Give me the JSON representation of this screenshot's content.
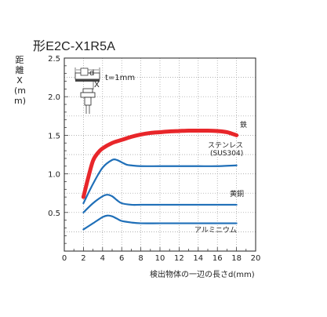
{
  "chart_data": {
    "type": "line",
    "title": "形E2C-X1R5A",
    "xlabel": "検出物体の一辺の長さd(mm)",
    "ylabel": "距離X(mm)",
    "xlim": [
      0,
      20
    ],
    "ylim": [
      0,
      2.5
    ],
    "xticks": [
      "0",
      "2",
      "4",
      "6",
      "8",
      "10",
      "12",
      "14",
      "16",
      "18",
      "20"
    ],
    "yticks": [
      "0.5",
      "1.0",
      "1.5",
      "2.0",
      "2.5"
    ],
    "grid": true,
    "diagram": {
      "label_d": "d",
      "label_x": "X",
      "label_t": "t=1mm"
    },
    "series": [
      {
        "name": "鉄",
        "color": "#e8262a",
        "x": [
          2,
          2.5,
          3,
          3.5,
          4,
          5,
          6,
          7,
          8,
          9,
          10,
          11,
          12,
          13,
          14,
          15,
          16,
          17,
          18
        ],
        "y": [
          0.7,
          0.95,
          1.17,
          1.27,
          1.33,
          1.4,
          1.44,
          1.48,
          1.51,
          1.53,
          1.54,
          1.55,
          1.555,
          1.56,
          1.56,
          1.56,
          1.555,
          1.54,
          1.5
        ]
      },
      {
        "name": "ステンレス(SUS304)",
        "color": "#1f6fb8",
        "x": [
          2,
          3,
          4,
          5,
          5.5,
          6,
          6.5,
          7,
          8,
          10,
          12,
          14,
          16,
          18
        ],
        "y": [
          0.62,
          0.87,
          1.08,
          1.18,
          1.18,
          1.15,
          1.12,
          1.11,
          1.1,
          1.1,
          1.1,
          1.1,
          1.1,
          1.11
        ]
      },
      {
        "name": "黄銅",
        "color": "#1f6fb8",
        "x": [
          2,
          3,
          4,
          4.5,
          5,
          5.5,
          6,
          7,
          8,
          10,
          12,
          14,
          16,
          18
        ],
        "y": [
          0.5,
          0.62,
          0.71,
          0.73,
          0.71,
          0.66,
          0.62,
          0.6,
          0.6,
          0.6,
          0.6,
          0.6,
          0.6,
          0.6
        ]
      },
      {
        "name": "アルミニウム",
        "color": "#1f6fb8",
        "x": [
          2,
          3,
          4,
          4.5,
          5,
          5.5,
          6,
          7,
          8,
          10,
          12,
          14,
          16,
          18
        ],
        "y": [
          0.28,
          0.36,
          0.44,
          0.46,
          0.45,
          0.42,
          0.39,
          0.37,
          0.36,
          0.36,
          0.36,
          0.36,
          0.36,
          0.36
        ]
      }
    ]
  }
}
